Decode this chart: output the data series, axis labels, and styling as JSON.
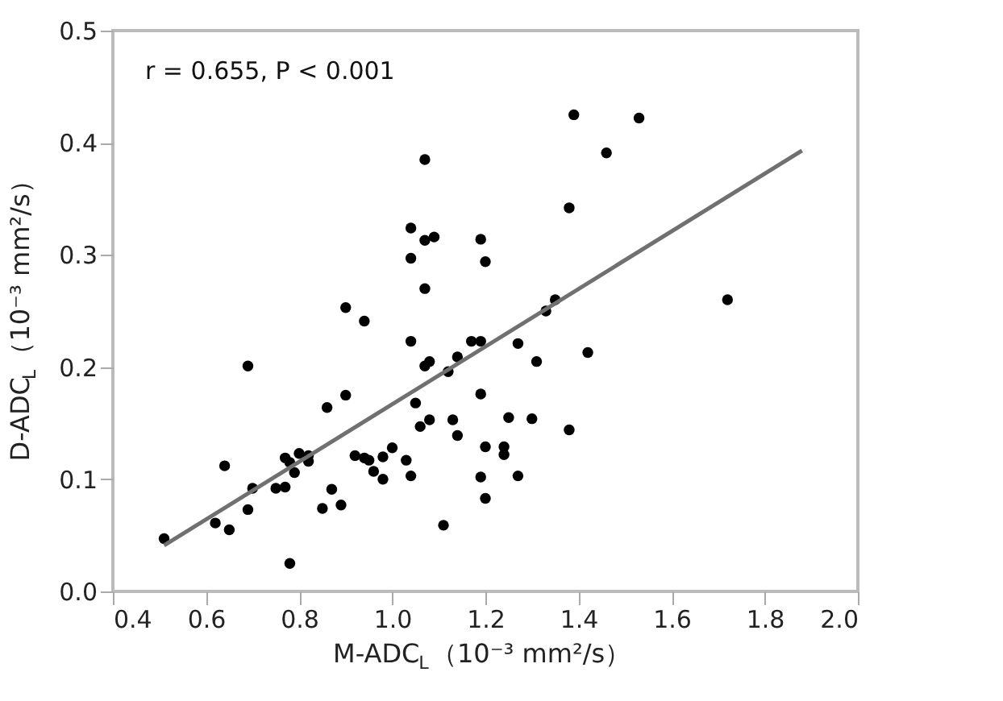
{
  "chart_data": {
    "type": "scatter",
    "xlabel": "M-ADC$_{L}$（10⁻³ mm²/s）",
    "ylabel": "D-ADC$_{L}$（10⁻³ mm²/s）",
    "annotations": [
      "r = 0.655, P < 0.001"
    ],
    "xlim": [
      0.4,
      2.0
    ],
    "xticks": [
      0.4,
      0.6,
      0.8,
      {
        "value": 1,
        "label": "1.0"
      },
      1.2,
      1.4,
      1.6,
      1.8,
      {
        "value": 2,
        "label": "2.0"
      }
    ],
    "ylim": [
      0.0,
      0.5
    ],
    "yticks": [
      {
        "value": 0,
        "label": "0.0"
      },
      0.1,
      0.2,
      0.3,
      0.4,
      0.5
    ],
    "grid": false,
    "series": [
      {
        "marker": "circle",
        "color": "#000000",
        "x": [
          0.51,
          0.62,
          0.65,
          0.64,
          0.69,
          0.69,
          0.7,
          0.75,
          0.77,
          0.77,
          0.78,
          0.78,
          0.8,
          0.79,
          0.82,
          0.82,
          0.85,
          0.87,
          0.89,
          0.86,
          0.9,
          0.9,
          0.94,
          0.92,
          0.94,
          0.95,
          0.96,
          0.98,
          0.98,
          1.0,
          1.03,
          1.04,
          1.04,
          1.05,
          1.06,
          1.08,
          1.07,
          1.08,
          1.11,
          1.12,
          1.13,
          1.14,
          1.14,
          1.17,
          1.19,
          1.19,
          1.2,
          1.19,
          1.2,
          1.35,
          1.33,
          1.27,
          1.31,
          1.42,
          1.25,
          1.3,
          1.38,
          1.24,
          1.24,
          1.27,
          1.72,
          1.07,
          1.04,
          1.07,
          1.09,
          1.19,
          1.2,
          1.04,
          1.07,
          1.39,
          1.53,
          1.46,
          1.38
        ],
        "values": [
          0.047,
          0.061,
          0.055,
          0.112,
          0.201,
          0.073,
          0.092,
          0.092,
          0.093,
          0.119,
          0.025,
          0.115,
          0.123,
          0.106,
          0.121,
          0.116,
          0.074,
          0.091,
          0.077,
          0.164,
          0.175,
          0.253,
          0.241,
          0.121,
          0.119,
          0.117,
          0.107,
          0.12,
          0.1,
          0.128,
          0.117,
          0.103,
          0.223,
          0.168,
          0.147,
          0.153,
          0.201,
          0.205,
          0.059,
          0.196,
          0.153,
          0.209,
          0.139,
          0.223,
          0.176,
          0.223,
          0.129,
          0.102,
          0.083,
          0.26,
          0.25,
          0.221,
          0.205,
          0.213,
          0.155,
          0.154,
          0.144,
          0.129,
          0.122,
          0.103,
          0.26,
          0.385,
          0.324,
          0.313,
          0.316,
          0.314,
          0.294,
          0.297,
          0.27,
          0.425,
          0.422,
          0.391,
          0.342
        ]
      },
      {
        "type": "line",
        "color": "#707070",
        "x": [
          0.51,
          1.88
        ],
        "values": [
          0.041,
          0.393
        ]
      }
    ]
  }
}
